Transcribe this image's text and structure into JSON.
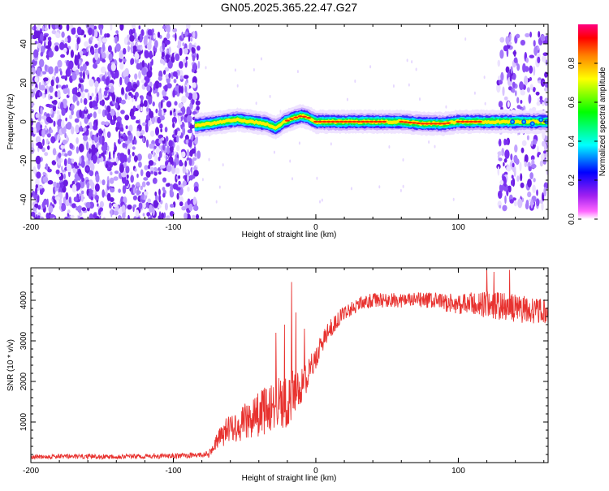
{
  "figure_title": "GN05.2025.365.22.47.G27",
  "colors": {
    "snr_line": "#e8322f",
    "axis": "#000000",
    "background": "#ffffff",
    "noise_purple": "#7a2ef0"
  },
  "chart_data": [
    {
      "type": "heatmap",
      "title": "",
      "xlabel": "Height of straight line (km)",
      "ylabel": "Frequency (Hz)",
      "xlim": [
        -200,
        163
      ],
      "ylim": [
        -50,
        50
      ],
      "x_ticks": [
        -200,
        -100,
        0,
        100
      ],
      "x_tick_labels": [
        "-200",
        "-100",
        "0",
        "100"
      ],
      "y_ticks": [
        -40,
        -20,
        0,
        20,
        40
      ],
      "y_tick_labels": [
        "-40",
        "-20",
        "0",
        "20",
        "40"
      ],
      "noise_region_x": [
        -200,
        -82
      ],
      "signal_band": {
        "x_start": -85,
        "x_end": 163,
        "center_freq_hz": [
          [
            -85,
            -2
          ],
          [
            -75,
            -1
          ],
          [
            -65,
            0
          ],
          [
            -55,
            1
          ],
          [
            -45,
            0
          ],
          [
            -35,
            -1
          ],
          [
            -28,
            -3
          ],
          [
            -22,
            0
          ],
          [
            -15,
            2
          ],
          [
            -10,
            3
          ],
          [
            -5,
            2
          ],
          [
            0,
            0
          ],
          [
            20,
            0
          ],
          [
            40,
            0
          ],
          [
            60,
            0
          ],
          [
            75,
            -1
          ],
          [
            90,
            -1
          ],
          [
            100,
            0
          ],
          [
            110,
            0
          ],
          [
            125,
            0
          ],
          [
            135,
            0
          ],
          [
            150,
            0
          ],
          [
            163,
            0
          ]
        ],
        "peak_amplitude_segments": [
          [
            -20,
            -5
          ],
          [
            0,
            50
          ],
          [
            60,
            95
          ],
          [
            100,
            115
          ]
        ]
      },
      "late_noise_x": [
        128,
        163
      ],
      "colorbar": {
        "label": "Normalized spectral amplitude",
        "range": [
          0.0,
          1.0
        ],
        "ticks": [
          0.0,
          0.2,
          0.4,
          0.6,
          0.8
        ],
        "tick_labels": [
          "0.0",
          "0.2",
          "0.4",
          "0.6",
          "0.8"
        ],
        "colormap": [
          "#ffffff",
          "#ff00ff",
          "#7f00ff",
          "#0000ff",
          "#00ffff",
          "#00ff00",
          "#ffff00",
          "#ff7f00",
          "#ff0000",
          "#ff007f"
        ]
      }
    },
    {
      "type": "line",
      "title": "",
      "xlabel": "Height of straight line (km)",
      "ylabel": "SNR (10 * v/v)",
      "xlim": [
        -200,
        163
      ],
      "ylim": [
        0,
        4800
      ],
      "x_ticks": [
        -200,
        -100,
        0,
        100
      ],
      "x_tick_labels": [
        "-200",
        "-100",
        "0",
        "100"
      ],
      "y_ticks": [
        1000,
        2000,
        3000,
        4000
      ],
      "y_tick_labels": [
        "1000",
        "2000",
        "3000",
        "4000"
      ],
      "series": [
        {
          "name": "SNR",
          "x": [
            -200,
            -150,
            -100,
            -75,
            -70,
            -65,
            -60,
            -55,
            -50,
            -45,
            -40,
            -35,
            -30,
            -25,
            -20,
            -15,
            -10,
            -5,
            0,
            5,
            10,
            15,
            20,
            25,
            30,
            40,
            50,
            60,
            80,
            100,
            120,
            140,
            163
          ],
          "mean": [
            150,
            150,
            160,
            200,
            500,
            700,
            900,
            900,
            1000,
            1100,
            1200,
            1300,
            1400,
            1500,
            1500,
            1700,
            1900,
            2200,
            2600,
            3000,
            3300,
            3500,
            3700,
            3800,
            3900,
            4000,
            4000,
            4000,
            4000,
            3900,
            3900,
            3800,
            3700
          ],
          "amp": [
            60,
            60,
            60,
            80,
            200,
            300,
            350,
            400,
            450,
            500,
            550,
            600,
            650,
            700,
            700,
            600,
            450,
            350,
            300,
            250,
            220,
            200,
            180,
            180,
            180,
            180,
            180,
            180,
            200,
            250,
            350,
            350,
            300
          ],
          "spikes": [
            [
              -28,
              3200
            ],
            [
              -22,
              3400
            ],
            [
              -17,
              4450
            ],
            [
              -14,
              3700
            ],
            [
              -8,
              3300
            ],
            [
              120,
              4800
            ],
            [
              125,
              4700
            ],
            [
              136,
              4750
            ]
          ]
        }
      ]
    }
  ]
}
